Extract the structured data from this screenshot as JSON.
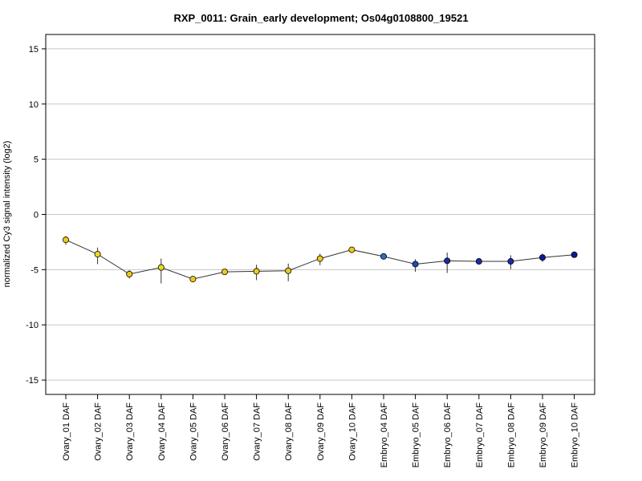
{
  "chart_data": {
    "type": "line",
    "title": "RXP_0011: Grain_early development; Os04g0108800_19521",
    "xlabel": "",
    "ylabel": "normalized Cy3 signal intensity (log2)",
    "ylim": [
      -16.3,
      16.3
    ],
    "yticks": [
      15,
      10,
      5,
      0,
      -5,
      -10,
      -15
    ],
    "grid": true,
    "categories": [
      "Ovary_01 DAF",
      "Ovary_02 DAF",
      "Ovary_03 DAF",
      "Ovary_04 DAF",
      "Ovary_05 DAF",
      "Ovary_06 DAF",
      "Ovary_07 DAF",
      "Ovary_08 DAF",
      "Ovary_09 DAF",
      "Ovary_10 DAF",
      "Embryo_04 DAF",
      "Embryo_05 DAF",
      "Embryo_06 DAF",
      "Embryo_07 DAF",
      "Embryo_08 DAF",
      "Embryo_09 DAF",
      "Embryo_10 DAF"
    ],
    "series": [
      {
        "values": [
          -2.3,
          -3.6,
          -5.4,
          -4.8,
          -5.85,
          -5.2,
          -5.15,
          -5.1,
          -4.0,
          -3.2,
          -3.8,
          -4.5,
          -4.2,
          -4.25,
          -4.25,
          -3.9,
          -3.65
        ],
        "error_low": [
          -2.75,
          -4.5,
          -5.8,
          -6.25,
          -6.1,
          -5.35,
          -5.95,
          -6.05,
          -4.6,
          -3.3,
          -3.9,
          -5.2,
          -5.3,
          -4.35,
          -4.95,
          -4.3,
          -3.75
        ],
        "error_high": [
          -2.0,
          -3.0,
          -5.05,
          -4.0,
          -5.6,
          -5.05,
          -4.55,
          -4.45,
          -3.55,
          -3.05,
          -3.7,
          -4.05,
          -3.45,
          -4.15,
          -3.7,
          -3.55,
          -3.55
        ],
        "point_colors": [
          "#f0c814",
          "#f0d81c",
          "#f0c814",
          "#f0d81c",
          "#f0c814",
          "#f0c814",
          "#f0c814",
          "#f0c814",
          "#f0c814",
          "#f0c814",
          "#2a6ecc",
          "#2446b8",
          "#1a2ea8",
          "#1a2ea8",
          "#1a2ea8",
          "#0a1a99",
          "#0a1a99"
        ]
      }
    ]
  }
}
